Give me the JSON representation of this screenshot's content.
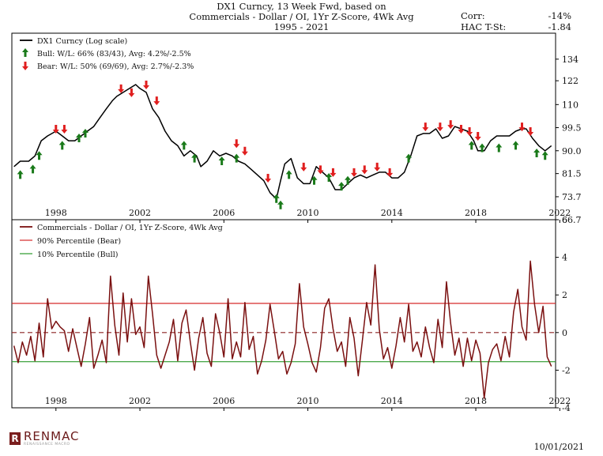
{
  "header": {
    "title_lines": [
      "DX1 Curncy, 13 Week Fwd, based on",
      "Commercials - Dollar / OI, 1Yr Z-Score, 4Wk Avg",
      "1995 - 2021"
    ],
    "corr_label": "Corr:",
    "corr_value": "-14%",
    "hac_label": "HAC T-St:",
    "hac_value": "-1.84"
  },
  "colors": {
    "price": "#000000",
    "zscore": "#7a1010",
    "bear": "#e01e1e",
    "bull": "#1a7a1a",
    "bear_line": "#d62a2a",
    "bull_line": "#2a9a2a"
  },
  "chart_data": [
    {
      "type": "line",
      "log_scale": true,
      "ylim": [
        66.7,
        150
      ],
      "ytick_labels": [
        "134",
        "122",
        "110",
        "99.5",
        "90.0",
        "81.5",
        "73.7",
        "66.7"
      ],
      "yticks": [
        134,
        122,
        110,
        99.5,
        90.0,
        81.5,
        73.7,
        66.7
      ],
      "xlim": [
        1995.9,
        2021.8
      ],
      "xtick_labels": [
        "1998",
        "2002",
        "2006",
        "2010",
        "2014",
        "2018",
        "2022"
      ],
      "xticks": [
        1998,
        2002,
        2006,
        2010,
        2014,
        2018,
        2022
      ],
      "legend_position": "top-left",
      "series": [
        {
          "name": "DX1 Curncy (Log scale)",
          "x": [
            1996.0,
            1996.3,
            1996.7,
            1997.0,
            1997.3,
            1997.6,
            1998.0,
            1998.3,
            1998.6,
            1998.9,
            1999.2,
            1999.5,
            1999.8,
            2000.1,
            2000.4,
            2000.7,
            2000.9,
            2001.2,
            2001.5,
            2001.8,
            2002.0,
            2002.3,
            2002.6,
            2002.9,
            2003.2,
            2003.5,
            2003.8,
            2004.1,
            2004.4,
            2004.7,
            2004.9,
            2005.2,
            2005.5,
            2005.8,
            2006.1,
            2006.4,
            2006.7,
            2007.0,
            2007.3,
            2007.6,
            2007.9,
            2008.2,
            2008.5,
            2008.7,
            2008.9,
            2009.2,
            2009.5,
            2009.8,
            2010.1,
            2010.4,
            2010.7,
            2011.0,
            2011.3,
            2011.6,
            2011.9,
            2012.2,
            2012.5,
            2012.8,
            2013.1,
            2013.4,
            2013.7,
            2014.0,
            2014.3,
            2014.6,
            2014.9,
            2015.2,
            2015.5,
            2015.8,
            2016.1,
            2016.4,
            2016.7,
            2017.0,
            2017.3,
            2017.6,
            2017.9,
            2018.1,
            2018.4,
            2018.7,
            2019.0,
            2019.3,
            2019.6,
            2019.9,
            2020.2,
            2020.4,
            2020.7,
            2021.0,
            2021.3,
            2021.6
          ],
          "y": [
            84,
            86,
            86,
            88,
            94,
            96,
            98,
            96,
            94,
            94,
            96,
            98,
            100,
            104,
            108,
            112,
            114,
            116,
            118,
            120,
            118,
            116,
            108,
            104,
            98,
            94,
            92,
            88,
            90,
            88,
            84,
            86,
            90,
            88,
            89,
            88,
            86,
            85,
            83,
            81,
            79,
            75,
            73,
            79,
            85,
            87,
            80,
            78,
            78,
            84,
            82,
            80,
            76,
            76,
            78,
            80,
            81,
            80,
            81,
            82,
            82,
            80,
            80,
            82,
            88,
            96,
            97,
            97,
            99,
            95,
            96,
            100,
            99,
            98,
            94,
            90,
            90,
            94,
            96,
            96,
            96,
            98,
            99,
            99,
            95,
            92,
            90,
            92
          ]
        }
      ],
      "markers": [
        {
          "name": "Bull: W/L: 66% (83/43), Avg: 4.2%/-2.5%",
          "kind": "bull",
          "x": [
            1996.3,
            1996.9,
            1997.2,
            1998.3,
            1999.1,
            1999.4,
            2004.1,
            2004.6,
            2005.9,
            2006.6,
            2008.5,
            2008.7,
            2009.1,
            2010.3,
            2011.0,
            2011.6,
            2011.9,
            2014.8,
            2017.8,
            2018.3,
            2019.1,
            2019.9,
            2020.9,
            2021.3
          ],
          "y": [
            81,
            83,
            88,
            92,
            95,
            97,
            92,
            87,
            86,
            87,
            73,
            71,
            81,
            79,
            80,
            77,
            79,
            87,
            92,
            91,
            91,
            92,
            89,
            88
          ]
        },
        {
          "name": "Bear: W/L: 50% (69/69), Avg: 2.7%/-2.3%",
          "kind": "bear",
          "x": [
            1998.0,
            1998.4,
            2001.1,
            2001.6,
            2002.3,
            2002.8,
            2006.6,
            2007.0,
            2008.1,
            2009.8,
            2010.6,
            2011.2,
            2012.2,
            2012.7,
            2013.3,
            2013.9,
            2015.6,
            2016.3,
            2016.8,
            2017.3,
            2017.7,
            2018.1,
            2020.2,
            2020.6
          ],
          "y": [
            99,
            99,
            118,
            116,
            120,
            112,
            93,
            90,
            80,
            84,
            83,
            82,
            82,
            83,
            84,
            82,
            100,
            100,
            101,
            99,
            98,
            96,
            100,
            98
          ]
        }
      ]
    },
    {
      "type": "line",
      "ylim": [
        -4,
        6
      ],
      "yticks": [
        -4,
        -2,
        0,
        2,
        4,
        6
      ],
      "ytick_labels": [
        "-4",
        "-2",
        "0",
        "2",
        "4",
        "6"
      ],
      "xlim": [
        1995.9,
        2021.8
      ],
      "xtick_labels": [
        "1998",
        "2002",
        "2006",
        "2010",
        "2014",
        "2018",
        "2022"
      ],
      "xticks": [
        1998,
        2002,
        2006,
        2010,
        2014,
        2018,
        2022
      ],
      "legend_position": "top-left",
      "hlines": [
        {
          "name": "90% Percentile (Bear)",
          "y": 1.55,
          "kind": "bear"
        },
        {
          "name": "10% Percentile (Bull)",
          "y": -1.55,
          "kind": "bull"
        },
        {
          "name": "",
          "y": 0,
          "kind": "zero"
        }
      ],
      "series": [
        {
          "name": "Commercials - Dollar / OI, 1Yr Z-Score, 4Wk Avg",
          "x": [
            1996.0,
            1996.2,
            1996.4,
            1996.6,
            1996.8,
            1997.0,
            1997.2,
            1997.4,
            1997.6,
            1997.8,
            1998.0,
            1998.2,
            1998.4,
            1998.6,
            1998.8,
            1999.0,
            1999.2,
            1999.4,
            1999.6,
            1999.8,
            2000.0,
            2000.2,
            2000.4,
            2000.6,
            2000.8,
            2001.0,
            2001.2,
            2001.4,
            2001.6,
            2001.8,
            2002.0,
            2002.2,
            2002.4,
            2002.6,
            2002.8,
            2003.0,
            2003.2,
            2003.4,
            2003.6,
            2003.8,
            2004.0,
            2004.2,
            2004.4,
            2004.6,
            2004.8,
            2005.0,
            2005.2,
            2005.4,
            2005.6,
            2005.8,
            2006.0,
            2006.2,
            2006.4,
            2006.6,
            2006.8,
            2007.0,
            2007.2,
            2007.4,
            2007.6,
            2007.8,
            2008.0,
            2008.2,
            2008.4,
            2008.6,
            2008.8,
            2009.0,
            2009.2,
            2009.4,
            2009.6,
            2009.8,
            2010.0,
            2010.2,
            2010.4,
            2010.6,
            2010.8,
            2011.0,
            2011.2,
            2011.4,
            2011.6,
            2011.8,
            2012.0,
            2012.2,
            2012.4,
            2012.6,
            2012.8,
            2013.0,
            2013.2,
            2013.4,
            2013.6,
            2013.8,
            2014.0,
            2014.2,
            2014.4,
            2014.6,
            2014.8,
            2015.0,
            2015.2,
            2015.4,
            2015.6,
            2015.8,
            2016.0,
            2016.2,
            2016.4,
            2016.6,
            2016.8,
            2017.0,
            2017.2,
            2017.4,
            2017.6,
            2017.8,
            2018.0,
            2018.2,
            2018.4,
            2018.6,
            2018.8,
            2019.0,
            2019.2,
            2019.4,
            2019.6,
            2019.8,
            2020.0,
            2020.2,
            2020.4,
            2020.6,
            2020.8,
            2021.0,
            2021.2,
            2021.4,
            2021.6
          ],
          "y": [
            -0.7,
            -1.6,
            -0.5,
            -1.2,
            -0.2,
            -1.5,
            0.5,
            -1.3,
            1.8,
            0.2,
            0.6,
            0.3,
            0.1,
            -1.0,
            0.2,
            -0.8,
            -1.8,
            -0.6,
            0.8,
            -1.9,
            -1.2,
            -0.4,
            -1.6,
            3.0,
            0.4,
            -1.2,
            2.1,
            -0.5,
            1.8,
            -0.1,
            0.3,
            -0.8,
            3.0,
            1.0,
            -1.2,
            -1.9,
            -1.2,
            -0.5,
            0.7,
            -1.5,
            0.5,
            1.2,
            -0.5,
            -2.0,
            -0.3,
            0.8,
            -1.1,
            -1.8,
            1.0,
            0.0,
            -1.3,
            1.8,
            -1.4,
            -0.5,
            -1.3,
            1.6,
            -0.9,
            -0.2,
            -2.2,
            -1.5,
            -0.4,
            1.5,
            0.1,
            -1.4,
            -1.0,
            -2.2,
            -1.6,
            -0.6,
            2.6,
            0.3,
            -0.6,
            -1.6,
            -2.1,
            -0.8,
            1.3,
            1.8,
            0.2,
            -1.0,
            -0.5,
            -1.8,
            0.8,
            -0.3,
            -2.3,
            -0.4,
            1.6,
            0.4,
            3.6,
            0.2,
            -1.4,
            -0.8,
            -1.9,
            -0.7,
            0.8,
            -0.5,
            1.5,
            -1.0,
            -0.5,
            -1.3,
            0.3,
            -0.8,
            -1.6,
            0.7,
            -0.8,
            2.7,
            0.5,
            -1.2,
            -0.3,
            -1.8,
            -0.3,
            -1.5,
            -0.4,
            -1.1,
            -3.5,
            -1.6,
            -0.9,
            -0.6,
            -1.5,
            -0.2,
            -1.3,
            1.1,
            2.3,
            0.3,
            -0.4,
            3.8,
            1.5,
            0.0,
            1.4,
            -1.3,
            -1.8
          ]
        }
      ]
    }
  ],
  "footer": {
    "logo_mark": "R",
    "logo_text": "RENMAC",
    "logo_sub": "RENAISSANCE MACRO",
    "date": "10/01/2021"
  }
}
